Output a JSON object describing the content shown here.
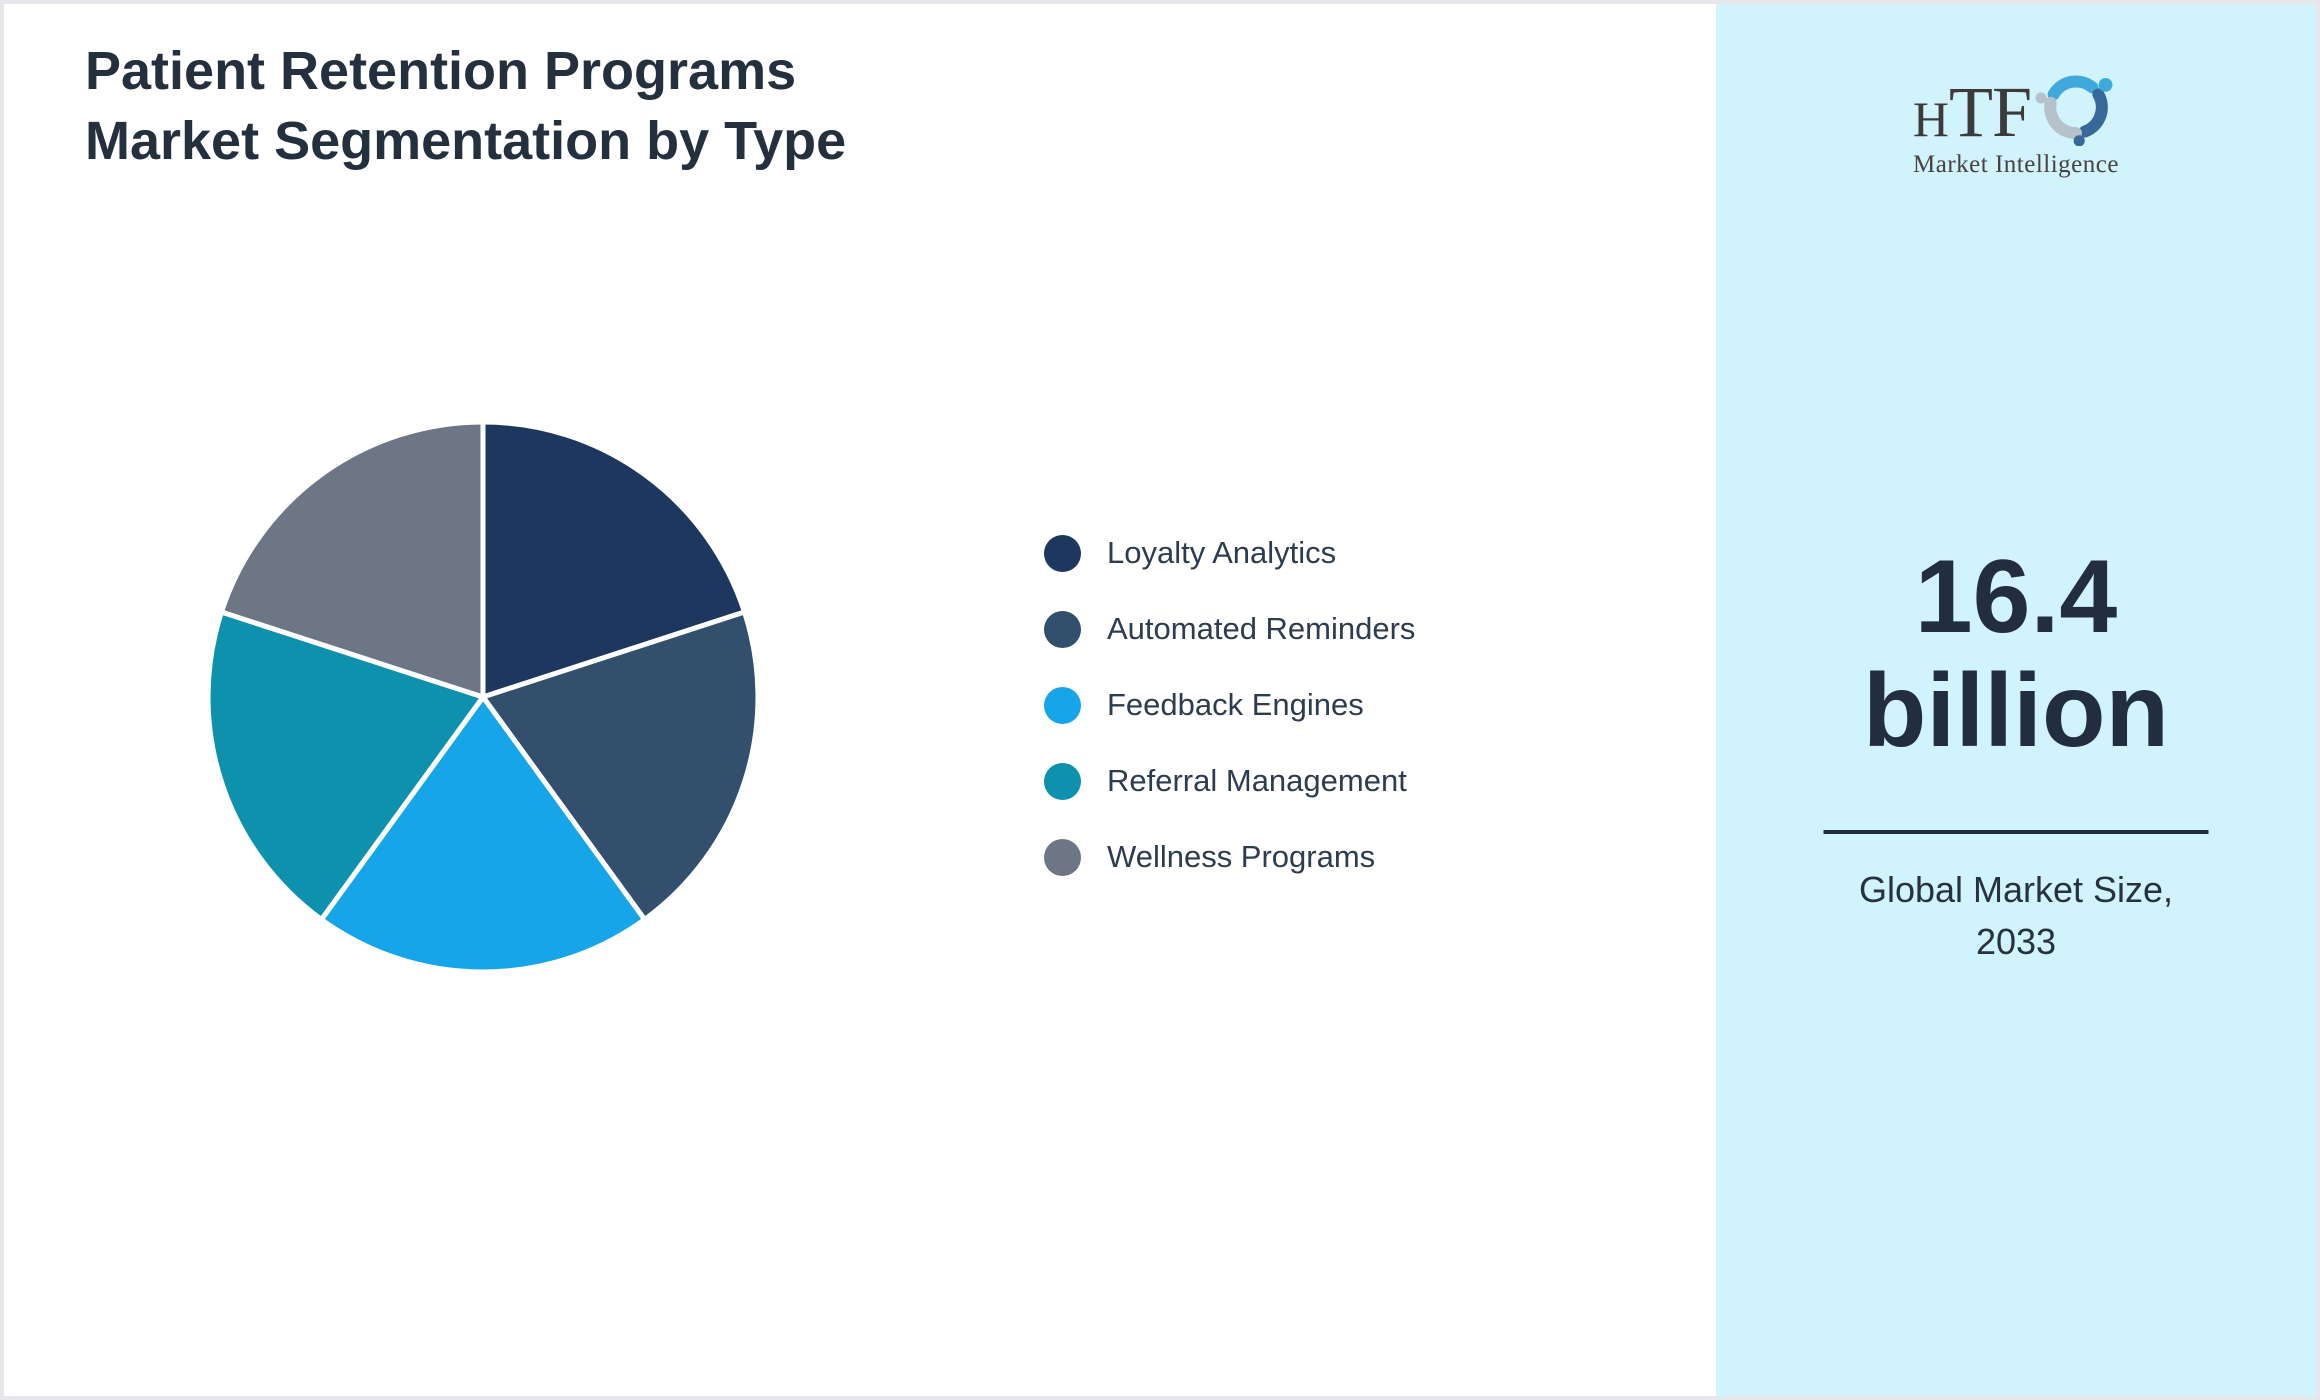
{
  "header": {
    "title_line1": "Patient Retention Programs",
    "title_line2": "Market Segmentation by Type"
  },
  "chart_data": {
    "type": "pie",
    "title": "Patient Retention Programs Market Segmentation by Type",
    "units": "percent share (estimated from slice angles)",
    "start_angle_deg": 0,
    "direction": "clockwise",
    "legend_position": "right-of-chart",
    "donut": false,
    "slice_border_color": "#ffffff",
    "segments": [
      {
        "label": "Loyalty Analytics",
        "value": 20,
        "color": "#1e375f"
      },
      {
        "label": "Automated Reminders",
        "value": 20,
        "color": "#32506e"
      },
      {
        "label": "Feedback Engines",
        "value": 20,
        "color": "#17a5e9"
      },
      {
        "label": "Referral Management",
        "value": 20,
        "color": "#0e91ad"
      },
      {
        "label": "Wellness Programs",
        "value": 20,
        "color": "#6d7685"
      }
    ]
  },
  "sidebar": {
    "background_color": "#d1f3fb",
    "logo": {
      "part1": "H",
      "part2": "TF",
      "subtext": "Market Intelligence",
      "swirl_colors": {
        "light_blue": "#3fa9dc",
        "gray": "#b6c2cb",
        "dark_blue": "#36689a"
      }
    },
    "market_size": {
      "value_line1": "16.4",
      "value_line2": "billion",
      "caption_line1": "Global Market Size,",
      "caption_line2": "2033"
    }
  },
  "colors": {
    "title_text": "#25303f",
    "legend_text": "#2d3c4e",
    "panel_text": "#222e3d",
    "divider": "#222e3d",
    "page_background": "#ffffff",
    "page_border": "#e5e7ea"
  }
}
